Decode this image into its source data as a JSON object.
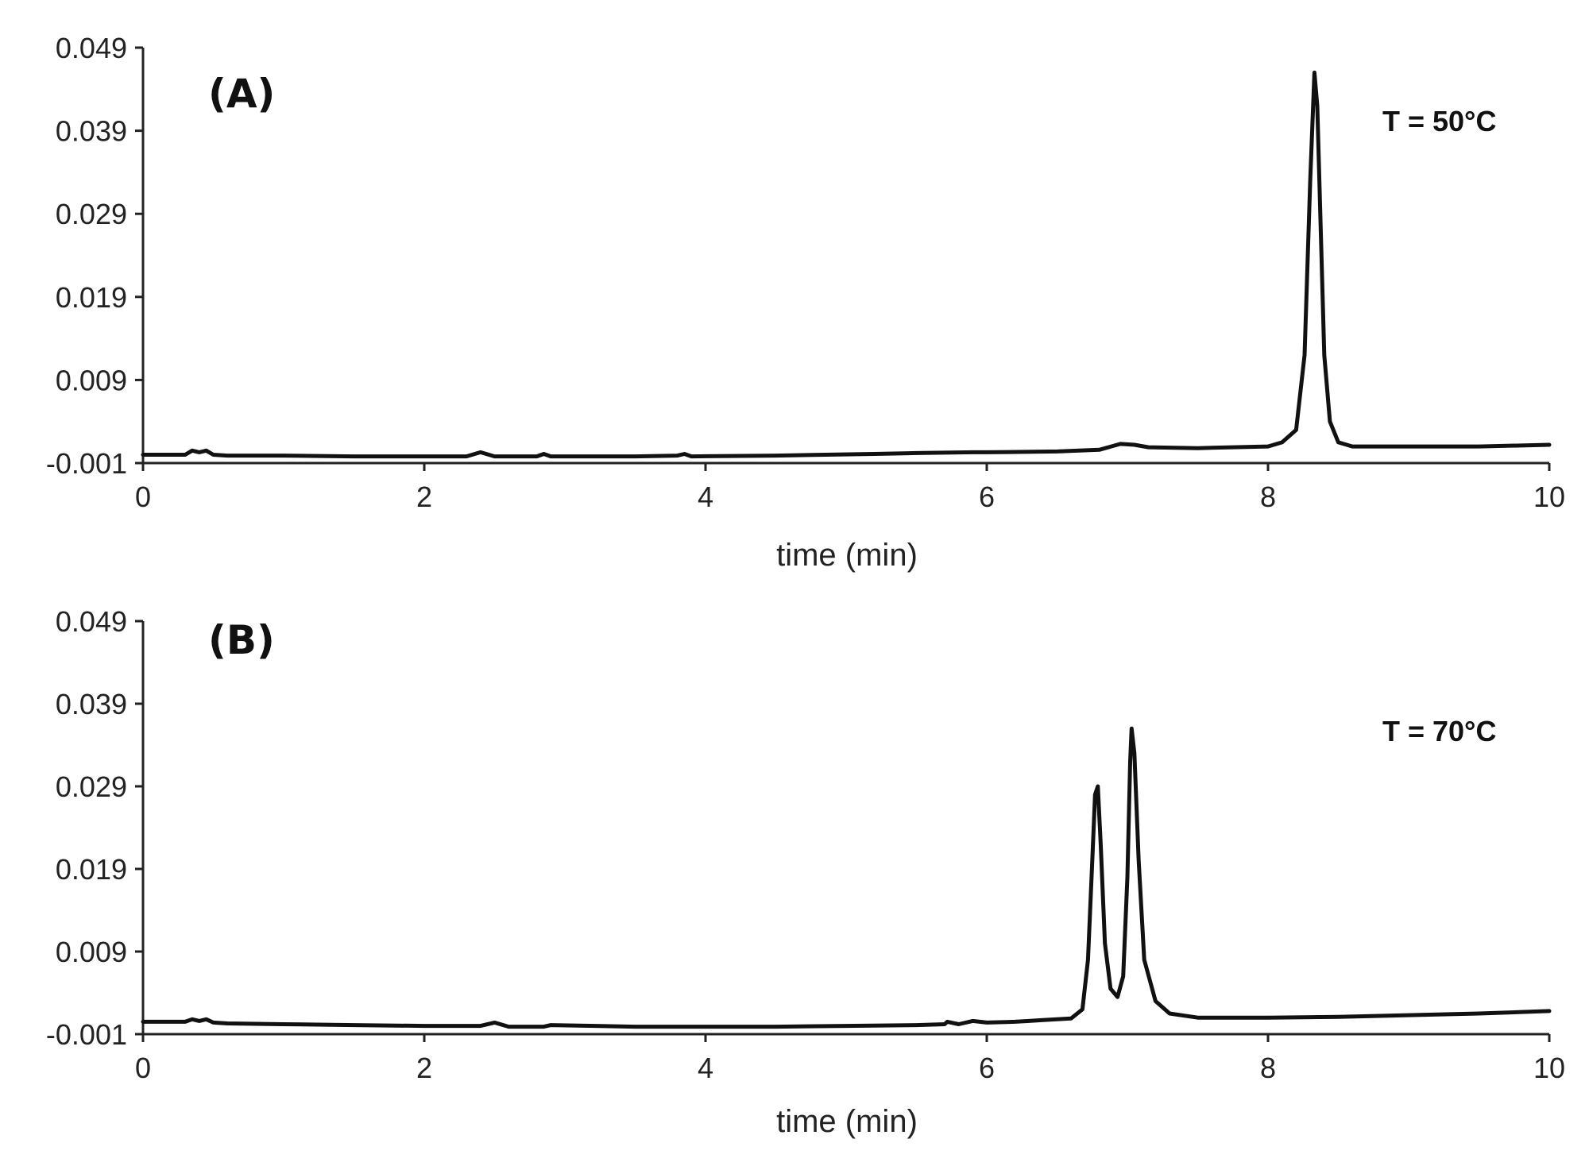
{
  "colors": {
    "line": "#111111",
    "axis": "#222222",
    "background": "#ffffff"
  },
  "chart_data": [
    {
      "type": "line",
      "panel_label": "(A)",
      "annotation": "T = 50°C",
      "xlabel": "time (min)",
      "ylabel": "",
      "xlim": [
        0,
        10
      ],
      "ylim": [
        -0.001,
        0.049
      ],
      "xticks": [
        "0",
        "2",
        "4",
        "6",
        "8",
        "10"
      ],
      "yticks": [
        "0.049",
        "0.039",
        "0.029",
        "0.019",
        "0.009",
        "-0.001"
      ],
      "grid": false,
      "legend": "none",
      "series": [
        {
          "x": [
            0,
            0.3,
            0.35,
            0.4,
            0.45,
            0.5,
            0.6,
            1.0,
            1.5,
            2.0,
            2.3,
            2.4,
            2.5,
            2.8,
            2.85,
            2.9,
            3.5,
            3.8,
            3.85,
            3.9,
            4.5,
            5.2,
            5.5,
            5.9,
            6.0,
            6.5,
            6.8,
            6.95,
            7.05,
            7.15,
            7.5,
            8.0,
            8.1,
            8.2,
            8.26,
            8.3,
            8.33,
            8.35,
            8.37,
            8.4,
            8.44,
            8.5,
            8.6,
            8.8,
            9.0,
            9.5,
            10.0
          ],
          "y": [
            0.0,
            0.0,
            0.0005,
            0.0003,
            0.0005,
            0.0,
            -0.0001,
            -0.0001,
            -0.0002,
            -0.0002,
            -0.0002,
            0.0003,
            -0.0002,
            -0.0002,
            0.0001,
            -0.0002,
            -0.0002,
            -0.0001,
            0.0001,
            -0.0002,
            -0.0001,
            0.0001,
            0.0002,
            0.0003,
            0.0003,
            0.0004,
            0.0006,
            0.0013,
            0.0012,
            0.0009,
            0.0008,
            0.001,
            0.0015,
            0.003,
            0.012,
            0.033,
            0.046,
            0.042,
            0.03,
            0.012,
            0.004,
            0.0015,
            0.001,
            0.001,
            0.001,
            0.001,
            0.0012
          ]
        }
      ]
    },
    {
      "type": "line",
      "panel_label": "(B)",
      "annotation": "T = 70°C",
      "xlabel": "time (min)",
      "ylabel": "",
      "xlim": [
        0,
        10
      ],
      "ylim": [
        -0.001,
        0.049
      ],
      "xticks": [
        "0",
        "2",
        "4",
        "6",
        "8",
        "10"
      ],
      "yticks": [
        "0.049",
        "0.039",
        "0.029",
        "0.019",
        "0.009",
        "-0.001"
      ],
      "grid": false,
      "legend": "none",
      "series": [
        {
          "x": [
            0,
            0.3,
            0.35,
            0.4,
            0.45,
            0.5,
            0.6,
            1.0,
            1.5,
            2.0,
            2.4,
            2.5,
            2.6,
            2.85,
            2.9,
            3.5,
            4.0,
            4.5,
            5.0,
            5.5,
            5.7,
            5.72,
            5.8,
            5.9,
            6.0,
            6.2,
            6.3,
            6.4,
            6.5,
            6.6,
            6.68,
            6.72,
            6.75,
            6.77,
            6.79,
            6.81,
            6.84,
            6.88,
            6.93,
            6.97,
            7.0,
            7.02,
            7.03,
            7.05,
            7.08,
            7.12,
            7.2,
            7.3,
            7.5,
            8.0,
            8.5,
            9.0,
            9.5,
            10.0
          ],
          "y": [
            0.0005,
            0.0005,
            0.0008,
            0.0006,
            0.0008,
            0.0004,
            0.0003,
            0.0002,
            0.0001,
            0.0,
            0.0,
            0.0004,
            -0.0001,
            -0.0001,
            0.0001,
            -0.0001,
            -0.0001,
            -0.0001,
            0.0,
            0.0001,
            0.0002,
            0.0005,
            0.0002,
            0.0006,
            0.0004,
            0.0005,
            0.0006,
            0.0007,
            0.0008,
            0.0009,
            0.002,
            0.008,
            0.02,
            0.028,
            0.029,
            0.022,
            0.01,
            0.0045,
            0.0035,
            0.006,
            0.018,
            0.032,
            0.036,
            0.033,
            0.02,
            0.008,
            0.003,
            0.0015,
            0.001,
            0.001,
            0.0011,
            0.0013,
            0.0015,
            0.0018
          ]
        }
      ]
    }
  ]
}
